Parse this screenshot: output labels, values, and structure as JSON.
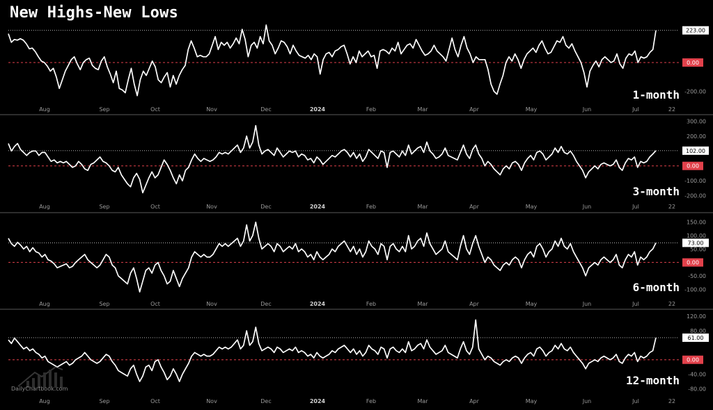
{
  "title": "New Highs-New Lows",
  "watermark": "DailyChartbook.com",
  "colors": {
    "line": "#ffffff",
    "zero": "#e2414b",
    "zero_badge": "#e2414b",
    "last_badge_bg": "#ffffff",
    "last_badge_text": "#000000",
    "separator": "#5a5a5a",
    "ticks": "#9a9a9a"
  },
  "chart_data": [
    {
      "type": "line",
      "name": "1-month",
      "x_labels": [
        "Aug",
        "Sep",
        "Oct",
        "Nov",
        "Dec",
        "2024",
        "Feb",
        "Mar",
        "Apr",
        "May",
        "Jun",
        "Jul",
        "22"
      ],
      "y_ticks": [
        {
          "label": "-200.00",
          "value": -200
        }
      ],
      "ylim": [
        -270,
        260
      ],
      "last_value": 223,
      "last_label": "223.00",
      "zero_label": "0.00",
      "values": [
        200,
        140,
        160,
        155,
        165,
        155,
        130,
        95,
        100,
        75,
        40,
        10,
        0,
        -25,
        -60,
        -40,
        -100,
        -180,
        -120,
        -60,
        -20,
        20,
        40,
        -10,
        -50,
        0,
        20,
        30,
        -20,
        -40,
        -50,
        10,
        40,
        -30,
        -80,
        -140,
        -60,
        -180,
        -190,
        -210,
        -120,
        -40,
        -150,
        -230,
        -120,
        -60,
        -90,
        -40,
        10,
        -30,
        -120,
        -140,
        -100,
        -70,
        -170,
        -90,
        -150,
        -90,
        -50,
        -20,
        90,
        150,
        100,
        40,
        50,
        40,
        40,
        60,
        120,
        180,
        90,
        140,
        120,
        140,
        100,
        130,
        170,
        130,
        230,
        160,
        40,
        120,
        140,
        100,
        180,
        130,
        260,
        150,
        120,
        60,
        100,
        150,
        140,
        110,
        60,
        120,
        80,
        50,
        40,
        30,
        50,
        20,
        60,
        40,
        -80,
        20,
        60,
        70,
        40,
        80,
        90,
        110,
        120,
        60,
        -10,
        40,
        0,
        80,
        40,
        60,
        80,
        40,
        50,
        -40,
        80,
        90,
        80,
        60,
        100,
        80,
        140,
        60,
        90,
        120,
        130,
        100,
        160,
        120,
        80,
        50,
        60,
        80,
        120,
        80,
        60,
        40,
        10,
        90,
        170,
        90,
        40,
        120,
        180,
        100,
        60,
        0,
        40,
        20,
        20,
        20,
        -50,
        -150,
        -200,
        -220,
        -150,
        -90,
        0,
        40,
        10,
        60,
        20,
        -40,
        20,
        60,
        80,
        100,
        70,
        120,
        150,
        100,
        60,
        70,
        110,
        150,
        140,
        180,
        120,
        100,
        130,
        80,
        40,
        0,
        -70,
        -170,
        -60,
        -20,
        10,
        -30,
        20,
        40,
        20,
        0,
        10,
        60,
        -10,
        -40,
        30,
        60,
        50,
        80,
        0,
        40,
        30,
        40,
        70,
        90,
        223
      ]
    },
    {
      "type": "line",
      "name": "3-month",
      "x_labels": [
        "Aug",
        "Sep",
        "Oct",
        "Nov",
        "Dec",
        "2024",
        "Feb",
        "Mar",
        "Apr",
        "May",
        "Jun",
        "Jul",
        "22"
      ],
      "y_ticks": [
        {
          "label": "300.00",
          "value": 300
        },
        {
          "label": "200.00",
          "value": 200
        },
        {
          "label": "-100.00",
          "value": -100
        },
        {
          "label": "-200.00",
          "value": -200
        }
      ],
      "ylim": [
        -220,
        320
      ],
      "last_value": 102,
      "last_label": "102.00",
      "zero_label": "0.00",
      "values": [
        150,
        100,
        130,
        150,
        110,
        90,
        70,
        90,
        100,
        100,
        70,
        90,
        90,
        60,
        30,
        40,
        20,
        30,
        20,
        30,
        10,
        -10,
        0,
        30,
        10,
        -20,
        -30,
        10,
        20,
        40,
        60,
        30,
        20,
        0,
        -30,
        -40,
        -10,
        -60,
        -90,
        -120,
        -140,
        -80,
        -50,
        -90,
        -180,
        -130,
        -80,
        -40,
        -80,
        -60,
        -10,
        40,
        10,
        -30,
        -80,
        -120,
        -60,
        -100,
        -30,
        -10,
        40,
        80,
        50,
        30,
        50,
        40,
        30,
        40,
        60,
        90,
        80,
        90,
        80,
        100,
        120,
        140,
        90,
        120,
        200,
        120,
        160,
        270,
        140,
        80,
        100,
        110,
        90,
        70,
        120,
        90,
        60,
        80,
        100,
        90,
        100,
        60,
        80,
        70,
        40,
        50,
        20,
        60,
        40,
        10,
        30,
        50,
        70,
        60,
        80,
        100,
        110,
        90,
        60,
        90,
        50,
        80,
        30,
        60,
        110,
        90,
        70,
        50,
        100,
        90,
        -10,
        90,
        100,
        80,
        60,
        100,
        70,
        140,
        80,
        100,
        120,
        130,
        90,
        160,
        100,
        80,
        50,
        60,
        80,
        120,
        70,
        60,
        50,
        40,
        90,
        140,
        80,
        50,
        110,
        140,
        80,
        50,
        0,
        30,
        10,
        -20,
        -40,
        -60,
        -20,
        0,
        -20,
        20,
        30,
        10,
        -30,
        20,
        50,
        70,
        40,
        90,
        100,
        80,
        40,
        60,
        80,
        120,
        90,
        130,
        90,
        80,
        100,
        70,
        30,
        0,
        -30,
        -80,
        -40,
        -20,
        0,
        -20,
        10,
        20,
        10,
        0,
        10,
        40,
        -10,
        -30,
        20,
        50,
        40,
        60,
        -10,
        30,
        20,
        30,
        60,
        80,
        102
      ]
    },
    {
      "type": "line",
      "name": "6-month",
      "x_labels": [
        "Aug",
        "Sep",
        "Oct",
        "Nov",
        "Dec",
        "2024",
        "Feb",
        "Mar",
        "Apr",
        "May",
        "Jun",
        "Jul",
        "22"
      ],
      "y_ticks": [
        {
          "label": "150.00",
          "value": 150
        },
        {
          "label": "100.00",
          "value": 100
        },
        {
          "label": "50.00",
          "value": 50
        },
        {
          "label": "-50.00",
          "value": -50
        },
        {
          "label": "-100.00",
          "value": -100
        }
      ],
      "ylim": [
        -120,
        170
      ],
      "last_value": 73,
      "last_label": "73.00",
      "zero_label": "0.00",
      "values": [
        90,
        70,
        60,
        75,
        65,
        50,
        60,
        40,
        55,
        40,
        35,
        20,
        30,
        10,
        5,
        -5,
        -20,
        -15,
        -10,
        -5,
        -20,
        -15,
        0,
        10,
        20,
        30,
        10,
        0,
        -10,
        -20,
        -10,
        10,
        30,
        20,
        -10,
        -20,
        -50,
        -60,
        -70,
        -80,
        -40,
        -20,
        -60,
        -110,
        -70,
        -30,
        -20,
        -40,
        -10,
        0,
        -30,
        -50,
        -80,
        -70,
        -30,
        -60,
        -90,
        -60,
        -40,
        -20,
        20,
        40,
        30,
        20,
        30,
        20,
        20,
        30,
        50,
        70,
        60,
        70,
        60,
        70,
        80,
        90,
        60,
        80,
        140,
        80,
        100,
        150,
        90,
        50,
        60,
        70,
        60,
        40,
        70,
        60,
        40,
        50,
        60,
        50,
        70,
        40,
        50,
        40,
        20,
        30,
        10,
        40,
        20,
        10,
        20,
        30,
        50,
        40,
        60,
        70,
        80,
        60,
        40,
        60,
        30,
        50,
        20,
        40,
        80,
        60,
        50,
        30,
        70,
        60,
        10,
        60,
        70,
        50,
        40,
        60,
        40,
        100,
        50,
        60,
        80,
        90,
        60,
        110,
        70,
        50,
        30,
        40,
        50,
        80,
        40,
        30,
        20,
        10,
        60,
        100,
        50,
        30,
        70,
        100,
        60,
        30,
        0,
        20,
        10,
        -10,
        -20,
        -30,
        -10,
        0,
        -10,
        10,
        20,
        10,
        -20,
        10,
        30,
        40,
        20,
        60,
        70,
        50,
        20,
        40,
        50,
        80,
        60,
        90,
        60,
        50,
        70,
        40,
        20,
        0,
        -20,
        -50,
        -20,
        -10,
        0,
        -10,
        10,
        20,
        10,
        0,
        10,
        30,
        -10,
        -20,
        10,
        30,
        20,
        40,
        -10,
        20,
        10,
        20,
        40,
        50,
        73
      ]
    },
    {
      "type": "line",
      "name": "12-month",
      "x_labels": [
        "Aug",
        "Sep",
        "Oct",
        "Nov",
        "Dec",
        "2024",
        "Feb",
        "Mar",
        "Apr",
        "May",
        "Jun",
        "Jul",
        "22"
      ],
      "y_ticks": [
        {
          "label": "120.00",
          "value": 120
        },
        {
          "label": "80.00",
          "value": 80
        },
        {
          "label": "-40.00",
          "value": -40
        },
        {
          "label": "-80.00",
          "value": -80
        }
      ],
      "ylim": [
        -85,
        130
      ],
      "last_value": 61,
      "last_label": "61.00",
      "zero_label": "0.00",
      "values": [
        55,
        45,
        60,
        50,
        40,
        30,
        35,
        25,
        30,
        20,
        15,
        5,
        10,
        -5,
        -10,
        -15,
        -20,
        -15,
        -10,
        -5,
        -15,
        -10,
        0,
        5,
        10,
        20,
        10,
        0,
        -5,
        -10,
        -5,
        5,
        15,
        10,
        -5,
        -15,
        -30,
        -35,
        -40,
        -45,
        -25,
        -15,
        -40,
        -60,
        -45,
        -20,
        -15,
        -30,
        -5,
        0,
        -20,
        -35,
        -55,
        -45,
        -25,
        -40,
        -60,
        -40,
        -25,
        -10,
        10,
        20,
        15,
        10,
        15,
        10,
        10,
        15,
        25,
        35,
        30,
        35,
        30,
        35,
        45,
        55,
        30,
        40,
        80,
        40,
        50,
        90,
        45,
        25,
        30,
        35,
        30,
        20,
        35,
        30,
        20,
        25,
        30,
        25,
        35,
        20,
        25,
        20,
        10,
        15,
        5,
        20,
        10,
        5,
        10,
        15,
        25,
        20,
        30,
        35,
        40,
        30,
        20,
        30,
        15,
        25,
        10,
        20,
        40,
        30,
        25,
        15,
        35,
        30,
        5,
        30,
        35,
        25,
        20,
        30,
        20,
        50,
        25,
        30,
        40,
        45,
        30,
        55,
        35,
        25,
        15,
        20,
        25,
        40,
        20,
        15,
        10,
        5,
        30,
        50,
        25,
        15,
        35,
        110,
        30,
        15,
        0,
        10,
        5,
        -5,
        -10,
        -15,
        -5,
        0,
        -5,
        5,
        10,
        5,
        -10,
        5,
        15,
        20,
        10,
        30,
        35,
        25,
        10,
        20,
        25,
        40,
        30,
        45,
        30,
        25,
        35,
        20,
        10,
        0,
        -10,
        -25,
        -10,
        -5,
        0,
        -5,
        5,
        10,
        5,
        0,
        5,
        15,
        -5,
        -10,
        5,
        15,
        10,
        20,
        -5,
        10,
        5,
        10,
        20,
        25,
        61
      ]
    }
  ]
}
